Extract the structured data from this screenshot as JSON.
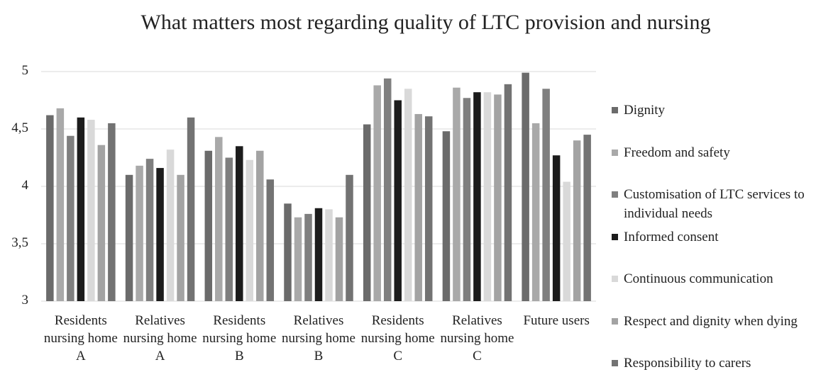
{
  "chart_data": {
    "type": "bar",
    "title": "What matters most regarding quality of LTC provision and nursing",
    "categories": [
      "Residents nursing home A",
      "Relatives nursing home A",
      "Residents nursing home B",
      "Relatives nursing home B",
      "Residents nursing home C",
      "Relatives nursing home C",
      "Future users"
    ],
    "series": [
      {
        "name": "Dignity",
        "color": "#6b6b6b",
        "values": [
          4.62,
          4.1,
          4.31,
          3.85,
          4.54,
          4.48,
          4.99
        ]
      },
      {
        "name": "Freedom and safety",
        "color": "#a9a9a9",
        "values": [
          4.68,
          4.18,
          4.43,
          3.73,
          4.88,
          4.86,
          4.55
        ]
      },
      {
        "name": "Customisation of LTC services to individual needs",
        "color": "#7f7f7f",
        "values": [
          4.44,
          4.24,
          4.25,
          3.76,
          4.94,
          4.77,
          4.85
        ]
      },
      {
        "name": "Informed consent",
        "color": "#1c1c1c",
        "values": [
          4.6,
          4.16,
          4.35,
          3.81,
          4.75,
          4.82,
          4.27
        ]
      },
      {
        "name": "Continuous communication",
        "color": "#d9d9d9",
        "values": [
          4.58,
          4.32,
          4.23,
          3.8,
          4.85,
          4.82,
          4.04
        ]
      },
      {
        "name": "Respect and dignity when dying",
        "color": "#a3a3a3",
        "values": [
          4.36,
          4.1,
          4.31,
          3.73,
          4.63,
          4.8,
          4.4
        ]
      },
      {
        "name": "Responsibility to carers",
        "color": "#737373",
        "values": [
          4.55,
          4.6,
          4.06,
          4.1,
          4.61,
          4.89,
          4.45
        ]
      }
    ],
    "ylim": [
      3,
      5
    ],
    "yticks": [
      3,
      {
        "value": 3.5,
        "label": "3,5"
      },
      4,
      {
        "value": 4.5,
        "label": "4,5"
      },
      5
    ],
    "grid": true,
    "legend": "right"
  }
}
